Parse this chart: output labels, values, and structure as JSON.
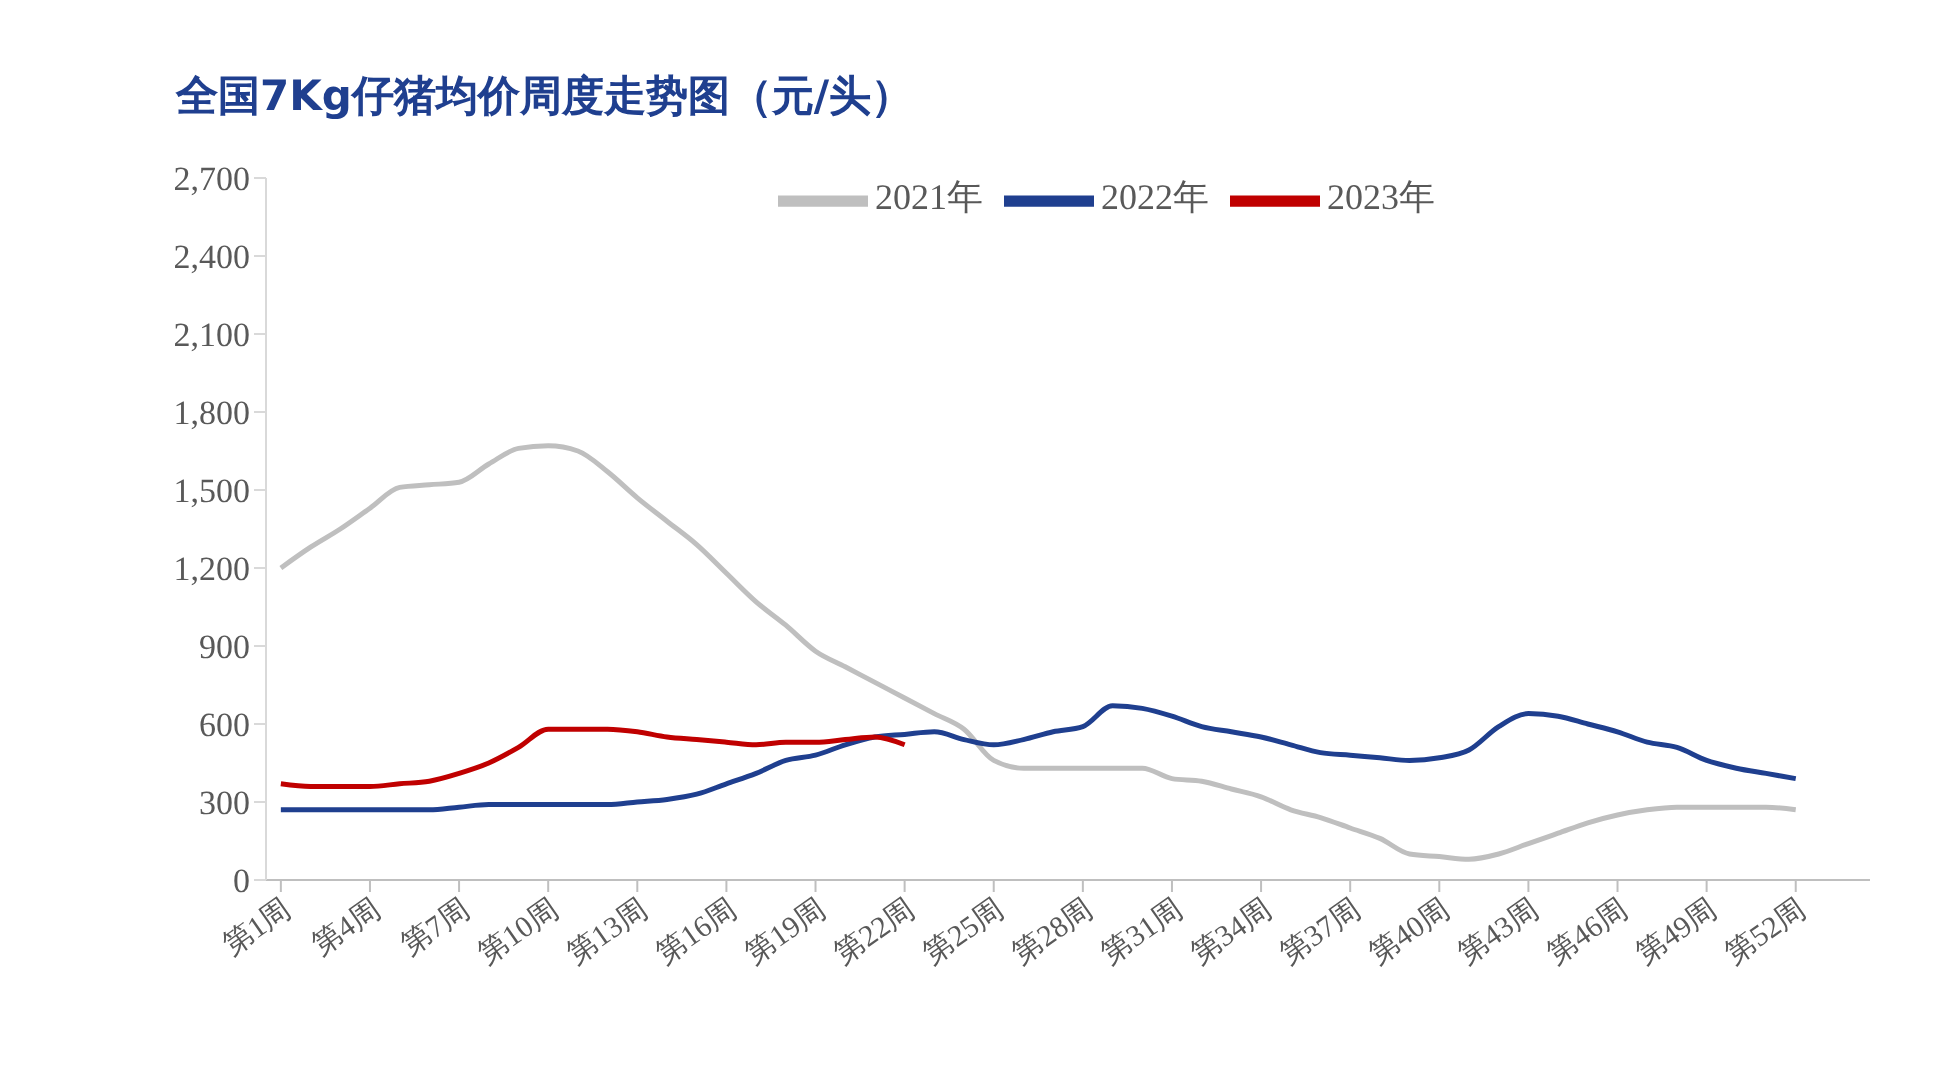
{
  "chart_data": {
    "type": "line",
    "title": "全国7Kg仔猪均价周度走势图（元/头）",
    "categories": [
      "第1周",
      null,
      null,
      "第4周",
      null,
      null,
      "第7周",
      null,
      null,
      "第10周",
      null,
      null,
      "第13周",
      null,
      null,
      "第16周",
      null,
      null,
      "第19周",
      null,
      null,
      "第22周",
      null,
      null,
      "第25周",
      null,
      null,
      "第28周",
      null,
      null,
      "第31周",
      null,
      null,
      "第34周",
      null,
      null,
      "第37周",
      null,
      null,
      "第40周",
      null,
      null,
      "第43周",
      null,
      null,
      "第46周",
      null,
      null,
      "第49周",
      null,
      null,
      "第52周"
    ],
    "series": [
      {
        "name": "2021年",
        "color": "#bfbfbf",
        "values": [
          1200,
          1280,
          1350,
          1430,
          1510,
          1520,
          1530,
          1600,
          1660,
          1670,
          1650,
          1570,
          1470,
          1380,
          1290,
          1180,
          1070,
          980,
          880,
          820,
          760,
          700,
          640,
          580,
          460,
          430,
          430,
          430,
          430,
          430,
          390,
          380,
          350,
          320,
          270,
          240,
          200,
          160,
          100,
          90,
          80,
          100,
          140,
          180,
          220,
          250,
          270,
          280,
          280,
          280,
          280,
          270
        ]
      },
      {
        "name": "2022年",
        "color": "#1f3f8f",
        "values": [
          270,
          270,
          270,
          270,
          270,
          270,
          280,
          290,
          290,
          290,
          290,
          290,
          300,
          310,
          330,
          370,
          410,
          460,
          480,
          520,
          550,
          560,
          570,
          540,
          520,
          540,
          570,
          590,
          670,
          660,
          630,
          590,
          570,
          550,
          520,
          490,
          480,
          470,
          460,
          470,
          500,
          590,
          640,
          630,
          600,
          570,
          530,
          510,
          460,
          430,
          410,
          390
        ]
      },
      {
        "name": "2023年",
        "color": "#c00000",
        "values": [
          370,
          360,
          360,
          360,
          370,
          380,
          410,
          450,
          510,
          580,
          580,
          580,
          570,
          550,
          540,
          530,
          520,
          530,
          530,
          540,
          550,
          520,
          null,
          null,
          null,
          null,
          null,
          null,
          null,
          null,
          null,
          null,
          null,
          null,
          null,
          null,
          null,
          null,
          null,
          null,
          null,
          null,
          null,
          null,
          null,
          null,
          null,
          null,
          null,
          null,
          null,
          null
        ]
      }
    ],
    "ylim": [
      0,
      2700
    ],
    "yticks": [
      0,
      300,
      600,
      900,
      {
        "value": 1200,
        "label": "1,200"
      },
      {
        "value": 1500,
        "label": "1,500"
      },
      {
        "value": 1800,
        "label": "1,800"
      },
      {
        "value": 2100,
        "label": "2,100"
      },
      {
        "value": 2400,
        "label": "2,400"
      },
      {
        "value": 2700,
        "label": "2,700"
      }
    ],
    "grid": false,
    "legend": "top",
    "marker": "none",
    "line_style": "solid"
  }
}
